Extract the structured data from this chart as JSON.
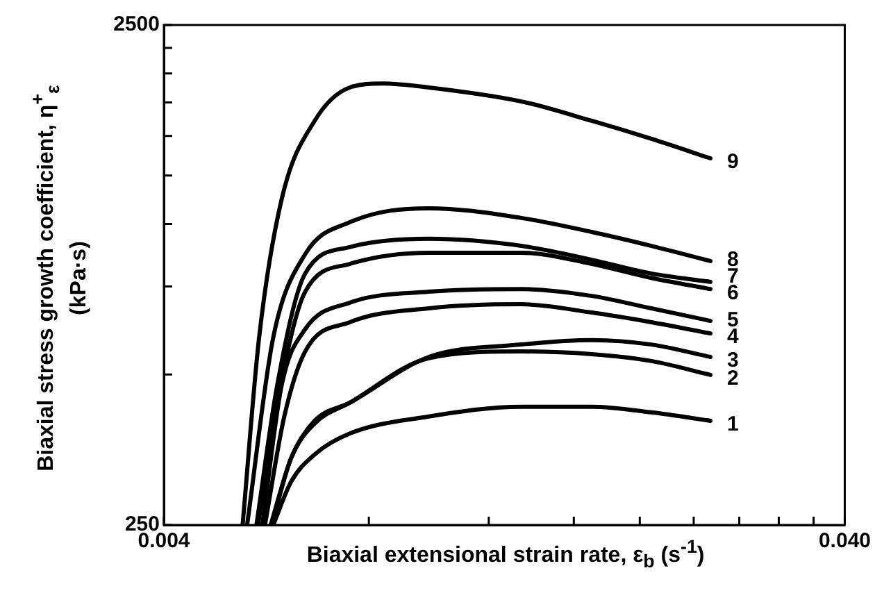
{
  "chart_data": {
    "type": "line",
    "xlabel": "Biaxial extensional strain rate, ε$_{b}$ (s$^{-1}$)",
    "ylabel": "Biaxial stress growth coefficient, η$^{+}$$_{ε}$ (kPa·s)",
    "log": "xy",
    "grid": false,
    "legend": false,
    "marker": "none",
    "line_style": "solid",
    "xlim": [
      0.004,
      0.04
    ],
    "xticks": [
      {
        "value": 0.004,
        "label": "0.004"
      },
      {
        "value": 0.008,
        "label": null
      },
      {
        "value": 0.012,
        "label": null
      },
      {
        "value": 0.016,
        "label": null
      },
      {
        "value": 0.02,
        "label": null
      },
      {
        "value": 0.024,
        "label": null
      },
      {
        "value": 0.028,
        "label": null
      },
      {
        "value": 0.032,
        "label": null
      },
      {
        "value": 0.036,
        "label": null
      },
      {
        "value": 0.04,
        "label": "0.040"
      }
    ],
    "ylim": [
      250,
      2500
    ],
    "yticks": [
      {
        "value": 250,
        "label": "250"
      },
      {
        "value": 500,
        "label": null
      },
      {
        "value": 750,
        "label": null
      },
      {
        "value": 1000,
        "label": null
      },
      {
        "value": 1250,
        "label": null
      },
      {
        "value": 1500,
        "label": null
      },
      {
        "value": 1750,
        "label": null
      },
      {
        "value": 2000,
        "label": null
      },
      {
        "value": 2250,
        "label": null
      },
      {
        "value": 2500,
        "label": "2500"
      }
    ],
    "series": [
      {
        "name": "1",
        "color": "#000000",
        "x": [
          0.00579,
          0.00615,
          0.00666,
          0.0075,
          0.0098,
          0.0134,
          0.017,
          0.0208,
          0.0254
        ],
        "values": [
          250,
          305,
          346,
          381,
          412,
          431,
          431,
          420,
          404
        ]
      },
      {
        "name": "2",
        "color": "#000000",
        "x": [
          0.00576,
          0.00615,
          0.00666,
          0.0075,
          0.0098,
          0.0134,
          0.017,
          0.0208,
          0.0254
        ],
        "values": [
          250,
          340,
          399,
          439,
          539,
          556,
          549,
          532,
          499
        ]
      },
      {
        "name": "3",
        "color": "#000000",
        "x": [
          0.00574,
          0.00615,
          0.00666,
          0.0075,
          0.0098,
          0.0134,
          0.017,
          0.0208,
          0.0254
        ],
        "values": [
          250,
          340,
          404,
          439,
          542,
          574,
          586,
          574,
          542
        ]
      },
      {
        "name": "4",
        "color": "#000000",
        "x": [
          0.00563,
          0.00601,
          0.00645,
          0.0075,
          0.0098,
          0.0134,
          0.017,
          0.0208,
          0.0254
        ],
        "values": [
          250,
          412,
          556,
          636,
          678,
          691,
          665,
          636,
          604
        ]
      },
      {
        "name": "5",
        "color": "#000000",
        "x": [
          0.00558,
          0.00596,
          0.00645,
          0.0075,
          0.0098,
          0.0134,
          0.017,
          0.0208,
          0.0254
        ],
        "values": [
          250,
          477,
          616,
          696,
          732,
          741,
          718,
          678,
          640
        ]
      },
      {
        "name": "6",
        "color": "#000000",
        "x": [
          0.0055,
          0.00587,
          0.00645,
          0.0075,
          0.0098,
          0.0134,
          0.017,
          0.0208,
          0.0254
        ],
        "values": [
          250,
          439,
          732,
          832,
          876,
          876,
          832,
          780,
          741
        ]
      },
      {
        "name": "7",
        "color": "#000000",
        "x": [
          0.00547,
          0.00587,
          0.00645,
          0.0075,
          0.0098,
          0.0134,
          0.017,
          0.0208,
          0.0254
        ],
        "values": [
          250,
          477,
          796,
          899,
          934,
          904,
          848,
          796,
          766
        ]
      },
      {
        "name": "8",
        "color": "#000000",
        "x": [
          0.0053,
          0.00579,
          0.00645,
          0.0075,
          0.0098,
          0.0134,
          0.017,
          0.0208,
          0.0254
        ],
        "values": [
          250,
          593,
          870,
          1008,
          1075,
          1028,
          964,
          904,
          843
        ]
      },
      {
        "name": "9",
        "color": "#000000",
        "x": [
          0.00522,
          0.00552,
          0.00596,
          0.00666,
          0.0075,
          0.0084,
          0.0098,
          0.0134,
          0.017,
          0.0208,
          0.0254
        ],
        "values": [
          250,
          593,
          1124,
          1608,
          1875,
          1910,
          1875,
          1758,
          1608,
          1480,
          1353
        ]
      }
    ]
  }
}
